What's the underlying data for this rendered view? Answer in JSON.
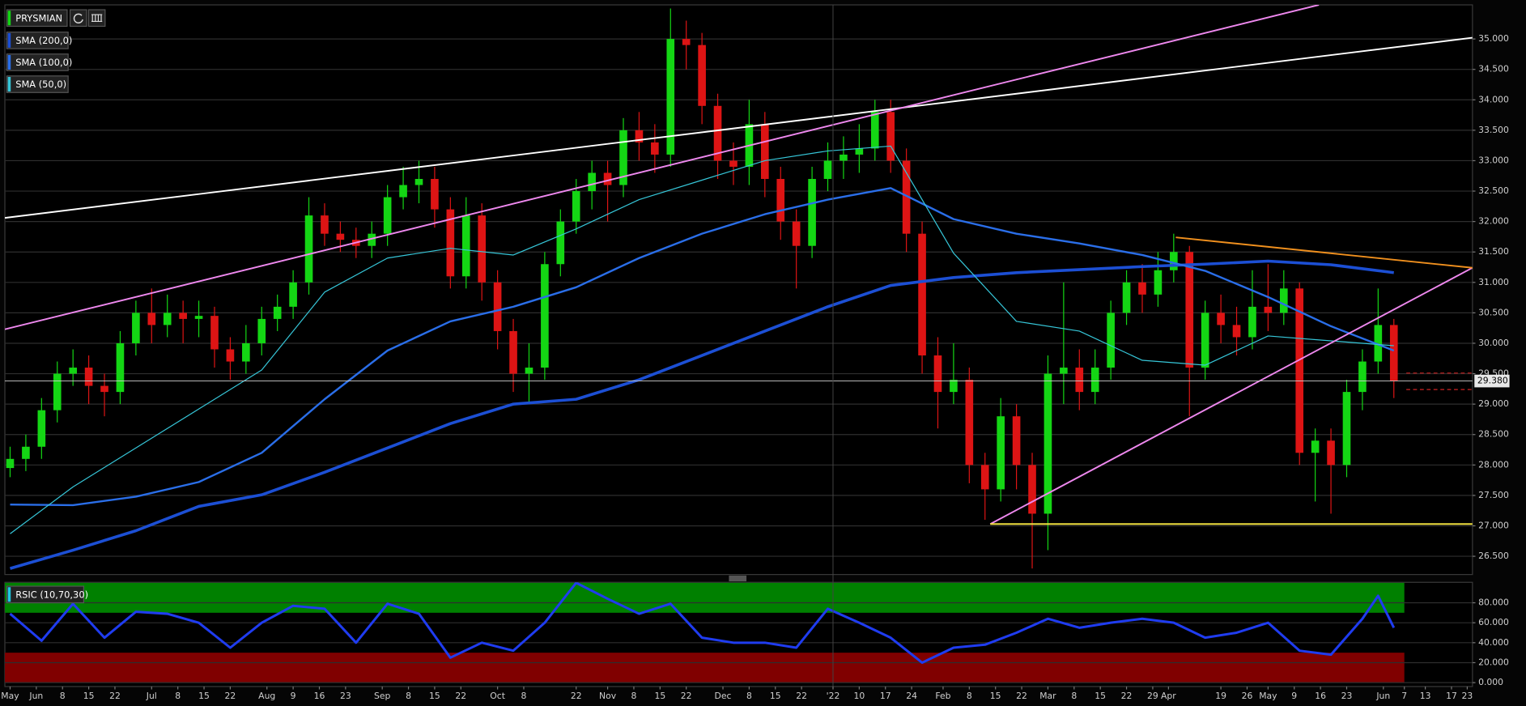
{
  "chart_data": [
    {
      "type": "candlestick",
      "xlim": [
        -1,
        279
      ],
      "ylim": [
        26.2,
        35.56
      ],
      "yticks": [
        {
          "value": 26.5,
          "label": "26.500"
        },
        {
          "value": 27,
          "label": "27.000"
        },
        {
          "value": 27.5,
          "label": "27.500"
        },
        {
          "value": 28,
          "label": "28.000"
        },
        {
          "value": 28.5,
          "label": "28.500"
        },
        {
          "value": 29,
          "label": "29.000"
        },
        {
          "value": 29.5,
          "label": "29.500"
        },
        {
          "value": 30,
          "label": "30.000"
        },
        {
          "value": 30.5,
          "label": "30.500"
        },
        {
          "value": 31,
          "label": "31.000"
        },
        {
          "value": 31.5,
          "label": "31.500"
        },
        {
          "value": 32,
          "label": "32.000"
        },
        {
          "value": 32.5,
          "label": "32.500"
        },
        {
          "value": 33,
          "label": "33.000"
        },
        {
          "value": 33.5,
          "label": "33.500"
        },
        {
          "value": 34,
          "label": "34.000"
        },
        {
          "value": 34.5,
          "label": "34.500"
        },
        {
          "value": 35,
          "label": "35.000"
        }
      ],
      "grid": true,
      "candles": {
        "name": "PRYSMIAN",
        "up_color": "#14d614",
        "down_color": "#dd1414",
        "legend_color": "#14d614",
        "x": [
          0,
          3,
          6,
          9,
          12,
          15,
          18,
          21,
          24,
          27,
          30,
          33,
          36,
          39,
          42,
          45,
          48,
          51,
          54,
          57,
          60,
          63,
          66,
          69,
          72,
          75,
          78,
          81,
          84,
          87,
          90,
          93,
          96,
          99,
          102,
          105,
          108,
          111,
          114,
          117,
          120,
          123,
          126,
          129,
          132,
          135,
          138,
          141,
          144,
          147,
          150,
          153,
          156,
          159,
          162,
          165,
          168,
          171,
          174,
          177,
          180,
          183,
          186,
          189,
          192,
          195,
          198,
          201,
          204,
          207,
          210,
          213,
          216,
          219,
          222,
          225,
          228,
          231,
          234,
          237,
          240,
          243,
          246,
          249,
          252,
          255,
          258,
          261,
          264
        ],
        "open": [
          27.95,
          28.1,
          28.3,
          28.9,
          29.5,
          29.6,
          29.3,
          29.2,
          30.0,
          30.5,
          30.3,
          30.5,
          30.4,
          30.45,
          29.9,
          29.7,
          30.0,
          30.4,
          30.6,
          31.0,
          32.1,
          31.8,
          31.7,
          31.6,
          31.8,
          32.4,
          32.6,
          32.7,
          32.2,
          31.1,
          32.1,
          31.0,
          30.2,
          29.5,
          29.6,
          31.3,
          32.0,
          32.5,
          32.8,
          32.6,
          33.5,
          33.3,
          33.1,
          35.0,
          34.9,
          33.9,
          33.0,
          32.9,
          33.6,
          32.7,
          32.0,
          31.6,
          32.7,
          33.0,
          33.1,
          33.2,
          33.8,
          33.0,
          31.8,
          29.8,
          29.2,
          29.4,
          28.0,
          27.6,
          28.8,
          28.0,
          27.2,
          29.5,
          29.6,
          29.2,
          29.6,
          30.5,
          31.0,
          30.8,
          31.2,
          31.5,
          29.6,
          30.5,
          30.3,
          30.1,
          30.6,
          30.5,
          30.9,
          28.2,
          28.4,
          28.0,
          29.2,
          29.7,
          30.3
        ],
        "high": [
          28.3,
          28.5,
          29.1,
          29.7,
          29.9,
          29.8,
          29.5,
          30.2,
          30.7,
          30.9,
          30.8,
          30.7,
          30.7,
          30.6,
          30.1,
          30.3,
          30.6,
          30.8,
          31.2,
          32.4,
          32.3,
          32.0,
          31.9,
          32.0,
          32.6,
          32.9,
          33.0,
          32.9,
          32.4,
          32.4,
          32.3,
          31.2,
          30.4,
          30.0,
          31.5,
          32.2,
          32.7,
          33.0,
          33.0,
          33.7,
          33.8,
          33.6,
          35.5,
          35.3,
          35.1,
          34.1,
          33.3,
          34.0,
          33.8,
          32.9,
          32.2,
          32.9,
          33.3,
          33.4,
          33.6,
          34.0,
          34.0,
          33.2,
          32.0,
          30.1,
          30.0,
          29.6,
          28.2,
          29.1,
          29.0,
          28.2,
          29.8,
          31.0,
          29.9,
          29.9,
          30.7,
          31.2,
          31.3,
          31.5,
          31.8,
          31.6,
          30.7,
          30.8,
          30.6,
          31.2,
          31.3,
          31.2,
          31.0,
          28.6,
          28.6,
          29.4,
          29.9,
          30.9,
          30.4
        ],
        "low": [
          27.8,
          27.9,
          28.1,
          28.7,
          29.3,
          29.0,
          28.8,
          29.0,
          29.8,
          30.0,
          30.1,
          30.0,
          30.1,
          29.6,
          29.4,
          29.5,
          29.8,
          30.2,
          30.4,
          30.8,
          31.6,
          31.5,
          31.4,
          31.4,
          31.6,
          32.2,
          32.3,
          31.9,
          30.9,
          30.9,
          30.7,
          29.9,
          29.2,
          29.0,
          29.4,
          31.1,
          31.8,
          32.2,
          32.0,
          32.4,
          33.0,
          32.8,
          32.9,
          34.5,
          33.6,
          32.7,
          32.6,
          32.6,
          32.4,
          31.7,
          30.9,
          31.4,
          32.5,
          32.7,
          32.8,
          33.0,
          32.8,
          31.5,
          29.5,
          28.6,
          29.0,
          27.7,
          27.1,
          27.4,
          27.6,
          26.3,
          26.6,
          29.0,
          28.9,
          29.0,
          29.4,
          30.3,
          30.5,
          30.6,
          31.0,
          28.8,
          29.4,
          30.0,
          29.8,
          29.9,
          30.2,
          30.3,
          28.0,
          27.4,
          27.2,
          27.8,
          28.9,
          29.5,
          29.1
        ],
        "close": [
          28.1,
          28.3,
          28.9,
          29.5,
          29.6,
          29.3,
          29.2,
          30.0,
          30.5,
          30.3,
          30.5,
          30.4,
          30.45,
          29.9,
          29.7,
          30.0,
          30.4,
          30.6,
          31.0,
          32.1,
          31.8,
          31.7,
          31.6,
          31.8,
          32.4,
          32.6,
          32.7,
          32.2,
          31.1,
          32.1,
          31.0,
          30.2,
          29.5,
          29.6,
          31.3,
          32.0,
          32.5,
          32.8,
          32.6,
          33.5,
          33.3,
          33.1,
          35.0,
          34.9,
          33.9,
          33.0,
          32.9,
          33.6,
          32.7,
          32.0,
          31.6,
          32.7,
          33.0,
          33.1,
          33.2,
          33.8,
          33.0,
          31.8,
          29.8,
          29.2,
          29.4,
          28.0,
          27.6,
          28.8,
          28.0,
          27.2,
          29.5,
          29.6,
          29.2,
          29.6,
          30.5,
          31.0,
          30.8,
          31.2,
          31.5,
          29.6,
          30.5,
          30.3,
          30.1,
          30.6,
          30.5,
          30.9,
          28.2,
          28.4,
          28.0,
          29.2,
          29.7,
          30.3,
          29.38
        ]
      },
      "series": [
        {
          "name": "SMA (200,0)",
          "color": "#1c4fd4",
          "width": 3,
          "x": [
            0,
            12,
            24,
            36,
            48,
            60,
            72,
            84,
            96,
            108,
            120,
            132,
            144,
            156,
            168,
            180,
            192,
            204,
            216,
            228,
            240,
            252,
            264
          ],
          "values": [
            26.3,
            26.6,
            26.92,
            27.32,
            27.51,
            27.88,
            28.28,
            28.68,
            29.0,
            29.08,
            29.4,
            29.8,
            30.2,
            30.6,
            30.95,
            31.08,
            31.16,
            31.21,
            31.26,
            31.3,
            31.35,
            31.29,
            31.16
          ]
        },
        {
          "name": "SMA (100,0)",
          "color": "#2a6ee8",
          "width": 2,
          "x": [
            0,
            12,
            24,
            36,
            48,
            60,
            72,
            84,
            96,
            108,
            120,
            132,
            144,
            156,
            168,
            180,
            192,
            204,
            216,
            228,
            240,
            252,
            264
          ],
          "values": [
            27.35,
            27.34,
            27.48,
            27.72,
            28.2,
            29.08,
            29.88,
            30.36,
            30.6,
            30.92,
            31.4,
            31.8,
            32.12,
            32.36,
            32.55,
            32.04,
            31.8,
            31.64,
            31.45,
            31.19,
            30.76,
            30.28,
            29.88
          ]
        },
        {
          "name": "SMA (50,0)",
          "color": "#36c6d8",
          "width": 1,
          "x": [
            0,
            12,
            24,
            36,
            48,
            60,
            72,
            84,
            96,
            108,
            120,
            132,
            144,
            156,
            168,
            180,
            192,
            204,
            216,
            228,
            240,
            252,
            264
          ],
          "values": [
            26.87,
            27.64,
            28.28,
            28.92,
            29.56,
            30.84,
            31.4,
            31.56,
            31.45,
            31.88,
            32.36,
            32.68,
            33.0,
            33.16,
            33.24,
            31.48,
            30.36,
            30.2,
            29.72,
            29.64,
            30.12,
            30.04,
            29.96
          ]
        }
      ],
      "drawings": [
        {
          "color": "#ffffff",
          "x": [
            -1,
            279
          ],
          "values": [
            32.06,
            35.02
          ]
        },
        {
          "color": "#ee88ee",
          "x": [
            -1,
            249.7
          ],
          "values": [
            30.23,
            35.56
          ]
        },
        {
          "color": "#ee88ee",
          "x": [
            187,
            279
          ],
          "values": [
            27.03,
            31.24
          ]
        },
        {
          "color": "#f0901e",
          "x": [
            222.4,
            279
          ],
          "values": [
            31.74,
            31.24
          ]
        },
        {
          "color": "#f0e040",
          "x": [
            187,
            279
          ],
          "values": [
            27.03,
            27.03
          ]
        }
      ],
      "last_price": {
        "value": 29.38,
        "label": "29.380"
      },
      "reference_lines": [
        29.51,
        29.24
      ]
    },
    {
      "type": "line",
      "xlim": [
        -1,
        279
      ],
      "ylim": [
        0,
        100
      ],
      "yticks": [
        {
          "value": 0,
          "label": "0.000"
        },
        {
          "value": 20,
          "label": "20.000"
        },
        {
          "value": 40,
          "label": "40.000"
        },
        {
          "value": 60,
          "label": "60.000"
        },
        {
          "value": 80,
          "label": "80.000"
        }
      ],
      "grid": true,
      "xticks": [
        {
          "value": 0,
          "label": "May"
        },
        {
          "value": 5,
          "label": "Jun"
        },
        {
          "value": 10,
          "label": "8"
        },
        {
          "value": 15,
          "label": "15"
        },
        {
          "value": 20,
          "label": "22"
        },
        {
          "value": 27,
          "label": "Jul"
        },
        {
          "value": 32,
          "label": "8"
        },
        {
          "value": 37,
          "label": "15"
        },
        {
          "value": 42,
          "label": "22"
        },
        {
          "value": 49,
          "label": "Aug"
        },
        {
          "value": 54,
          "label": "9"
        },
        {
          "value": 59,
          "label": "16"
        },
        {
          "value": 64,
          "label": "23"
        },
        {
          "value": 71,
          "label": "Sep"
        },
        {
          "value": 76,
          "label": "8"
        },
        {
          "value": 81,
          "label": "15"
        },
        {
          "value": 86,
          "label": "22"
        },
        {
          "value": 93,
          "label": "Oct"
        },
        {
          "value": 98,
          "label": "8"
        },
        {
          "value": 108,
          "label": "22"
        },
        {
          "value": 114,
          "label": "Nov"
        },
        {
          "value": 119,
          "label": "8"
        },
        {
          "value": 124,
          "label": "15"
        },
        {
          "value": 129,
          "label": "22"
        },
        {
          "value": 136,
          "label": "Dec"
        },
        {
          "value": 141,
          "label": "8"
        },
        {
          "value": 146,
          "label": "15"
        },
        {
          "value": 151,
          "label": "22"
        },
        {
          "value": 157,
          "label": "'22"
        },
        {
          "value": 162,
          "label": "10"
        },
        {
          "value": 167,
          "label": "17"
        },
        {
          "value": 172,
          "label": "24"
        },
        {
          "value": 178,
          "label": "Feb"
        },
        {
          "value": 183,
          "label": "8"
        },
        {
          "value": 188,
          "label": "15"
        },
        {
          "value": 193,
          "label": "22"
        },
        {
          "value": 198,
          "label": "Mar"
        },
        {
          "value": 203,
          "label": "8"
        },
        {
          "value": 208,
          "label": "15"
        },
        {
          "value": 213,
          "label": "22"
        },
        {
          "value": 218,
          "label": "29"
        },
        {
          "value": 221,
          "label": "Apr"
        },
        {
          "value": 231,
          "label": "19"
        },
        {
          "value": 236,
          "label": "26"
        },
        {
          "value": 240,
          "label": "May"
        },
        {
          "value": 245,
          "label": "9"
        },
        {
          "value": 250,
          "label": "16"
        },
        {
          "value": 255,
          "label": "23"
        },
        {
          "value": 262,
          "label": "Jun"
        },
        {
          "value": 266,
          "label": "7"
        },
        {
          "value": 270,
          "label": "13"
        },
        {
          "value": 275,
          "label": "17"
        },
        {
          "value": 278,
          "label": "23"
        }
      ],
      "bands": [
        {
          "from": 70,
          "to": 100,
          "color": "#008000",
          "xlim": [
            -1,
            266
          ]
        },
        {
          "from": 0,
          "to": 30,
          "color": "#800000",
          "xlim": [
            -1,
            266
          ]
        }
      ],
      "series": [
        {
          "name": "RSIC (10,70,30)",
          "color": "#1f3cf0",
          "width": 2.5,
          "x": [
            0,
            6,
            12,
            18,
            24,
            30,
            36,
            42,
            48,
            54,
            60,
            66,
            72,
            78,
            84,
            90,
            96,
            102,
            108,
            114,
            120,
            126,
            132,
            138,
            144,
            150,
            156,
            162,
            168,
            174,
            180,
            186,
            192,
            198,
            204,
            210,
            216,
            222,
            228,
            234,
            240,
            246,
            252,
            258,
            261,
            264
          ],
          "values": [
            69,
            42,
            79,
            45,
            71,
            69,
            60,
            35,
            60,
            77,
            74,
            40,
            79,
            69,
            25,
            40,
            32,
            60,
            100,
            84,
            69,
            79,
            45,
            40,
            40,
            35,
            74,
            60,
            45,
            20,
            35,
            38,
            50,
            64,
            55,
            60,
            64,
            60,
            45,
            50,
            60,
            32,
            28,
            64,
            87,
            55
          ]
        }
      ]
    }
  ]
}
